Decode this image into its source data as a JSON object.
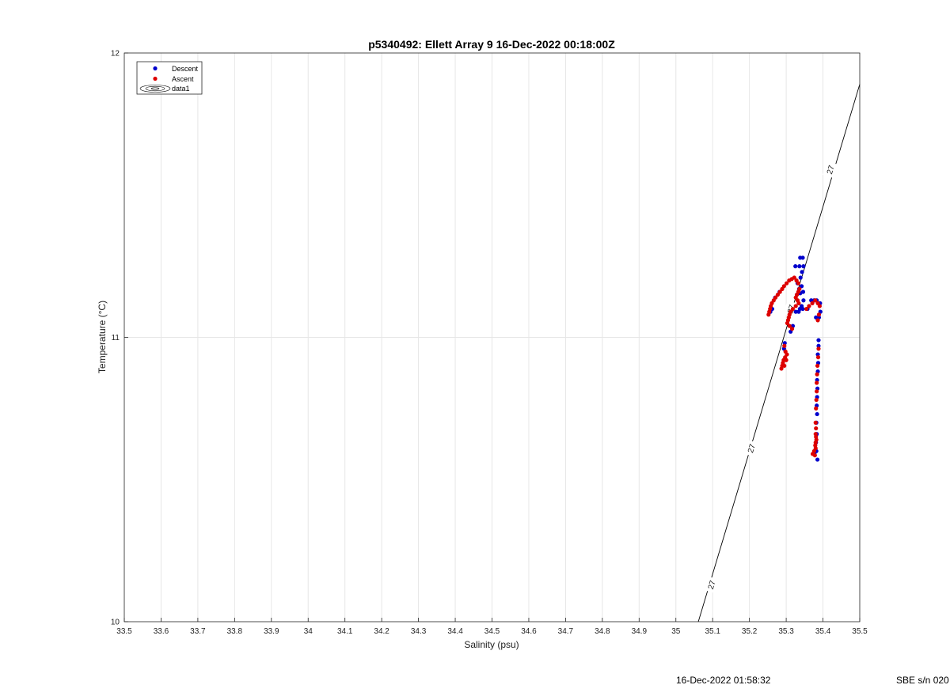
{
  "chart_data": {
    "type": "scatter",
    "title": "p5340492: Ellett Array 9 16-Dec-2022 00:18:00Z",
    "xlabel": "Salinity (psu)",
    "ylabel": "Temperature (°C)",
    "xlim": [
      33.5,
      35.5
    ],
    "ylim": [
      10,
      12
    ],
    "x_ticks": [
      "33.5",
      "33.6",
      "33.7",
      "33.8",
      "33.9",
      "34",
      "34.1",
      "34.2",
      "34.3",
      "34.4",
      "34.5",
      "34.6",
      "34.7",
      "34.8",
      "34.9",
      "35",
      "35.1",
      "35.2",
      "35.3",
      "35.4",
      "35.5"
    ],
    "y_ticks": [
      "10",
      "11",
      "12"
    ],
    "grid": true,
    "legend_position": "top-left",
    "legend": [
      "Descent",
      "Ascent",
      "data1"
    ],
    "series": [
      {
        "name": "Descent",
        "color": "#0000cc",
        "points": [
          [
            35.338,
            11.28
          ],
          [
            35.345,
            11.28
          ],
          [
            35.336,
            11.25
          ],
          [
            35.347,
            11.25
          ],
          [
            35.325,
            11.25
          ],
          [
            35.343,
            11.23
          ],
          [
            35.339,
            11.21
          ],
          [
            35.331,
            11.19
          ],
          [
            35.342,
            11.18
          ],
          [
            35.335,
            11.17
          ],
          [
            35.346,
            11.16
          ],
          [
            35.338,
            11.155
          ],
          [
            35.329,
            11.15
          ],
          [
            35.347,
            11.13
          ],
          [
            35.342,
            11.11
          ],
          [
            35.337,
            11.1
          ],
          [
            35.345,
            11.1
          ],
          [
            35.334,
            11.09
          ],
          [
            35.326,
            11.09
          ],
          [
            35.358,
            11.1
          ],
          [
            35.368,
            11.13
          ],
          [
            35.376,
            11.13
          ],
          [
            35.383,
            11.13
          ],
          [
            35.392,
            11.12
          ],
          [
            35.393,
            11.09
          ],
          [
            35.389,
            11.07
          ],
          [
            35.381,
            11.07
          ],
          [
            35.312,
            11.02
          ],
          [
            35.318,
            11.04
          ],
          [
            35.296,
            10.98
          ],
          [
            35.294,
            10.96
          ],
          [
            35.388,
            10.99
          ],
          [
            35.388,
            10.97
          ],
          [
            35.386,
            10.94
          ],
          [
            35.387,
            10.91
          ],
          [
            35.386,
            10.88
          ],
          [
            35.384,
            10.85
          ],
          [
            35.385,
            10.82
          ],
          [
            35.384,
            10.79
          ],
          [
            35.383,
            10.76
          ],
          [
            35.384,
            10.73
          ],
          [
            35.382,
            10.7
          ],
          [
            35.383,
            10.66
          ],
          [
            35.381,
            10.63
          ],
          [
            35.382,
            10.6
          ],
          [
            35.385,
            10.57
          ],
          [
            35.377,
            10.59
          ],
          [
            35.262,
            11.1
          ],
          [
            35.257,
            11.09
          ],
          [
            35.27,
            11.14
          ],
          [
            35.282,
            11.16
          ]
        ]
      },
      {
        "name": "Ascent",
        "color": "#dd0000",
        "points": [
          [
            35.252,
            11.08
          ],
          [
            35.254,
            11.09
          ],
          [
            35.256,
            11.1
          ],
          [
            35.258,
            11.11
          ],
          [
            35.261,
            11.12
          ],
          [
            35.266,
            11.13
          ],
          [
            35.271,
            11.14
          ],
          [
            35.277,
            11.15
          ],
          [
            35.283,
            11.16
          ],
          [
            35.289,
            11.17
          ],
          [
            35.294,
            11.18
          ],
          [
            35.301,
            11.19
          ],
          [
            35.308,
            11.2
          ],
          [
            35.315,
            11.205
          ],
          [
            35.322,
            11.21
          ],
          [
            35.328,
            11.2
          ],
          [
            35.333,
            11.19
          ],
          [
            35.336,
            11.17
          ],
          [
            35.333,
            11.16
          ],
          [
            35.329,
            11.15
          ],
          [
            35.326,
            11.14
          ],
          [
            35.331,
            11.13
          ],
          [
            35.334,
            11.12
          ],
          [
            35.326,
            11.11
          ],
          [
            35.318,
            11.1
          ],
          [
            35.312,
            11.09
          ],
          [
            35.309,
            11.08
          ],
          [
            35.307,
            11.07
          ],
          [
            35.305,
            11.06
          ],
          [
            35.303,
            11.05
          ],
          [
            35.309,
            11.04
          ],
          [
            35.316,
            11.03
          ],
          [
            35.355,
            11.1
          ],
          [
            35.362,
            11.11
          ],
          [
            35.371,
            11.12
          ],
          [
            35.379,
            11.13
          ],
          [
            35.386,
            11.12
          ],
          [
            35.391,
            11.11
          ],
          [
            35.389,
            11.08
          ],
          [
            35.386,
            11.06
          ],
          [
            35.295,
            10.97
          ],
          [
            35.298,
            10.95
          ],
          [
            35.297,
            10.93
          ],
          [
            35.293,
            10.92
          ],
          [
            35.291,
            10.91
          ],
          [
            35.289,
            10.9
          ],
          [
            35.287,
            10.89
          ],
          [
            35.295,
            10.9
          ],
          [
            35.3,
            10.92
          ],
          [
            35.302,
            10.94
          ],
          [
            35.388,
            10.96
          ],
          [
            35.387,
            10.93
          ],
          [
            35.385,
            10.9
          ],
          [
            35.384,
            10.87
          ],
          [
            35.383,
            10.84
          ],
          [
            35.383,
            10.81
          ],
          [
            35.382,
            10.78
          ],
          [
            35.381,
            10.75
          ],
          [
            35.38,
            10.7
          ],
          [
            35.381,
            10.68
          ],
          [
            35.38,
            10.66
          ],
          [
            35.381,
            10.65
          ],
          [
            35.382,
            10.64
          ],
          [
            35.38,
            10.63
          ],
          [
            35.379,
            10.62
          ],
          [
            35.38,
            10.61
          ],
          [
            35.376,
            10.6
          ],
          [
            35.372,
            10.59
          ],
          [
            35.378,
            10.585
          ]
        ]
      }
    ],
    "contour": {
      "name": "data1",
      "level": "27",
      "line": [
        [
          35.061,
          10.0
        ],
        [
          35.5,
          11.89
        ]
      ],
      "label_points": [
        [
          35.096,
          10.13
        ],
        [
          35.204,
          10.61
        ],
        [
          35.312,
          11.1
        ],
        [
          35.419,
          11.59
        ]
      ]
    }
  },
  "footer": {
    "timestamp": "16-Dec-2022 01:58:32",
    "serial": "SBE s/n 020"
  }
}
